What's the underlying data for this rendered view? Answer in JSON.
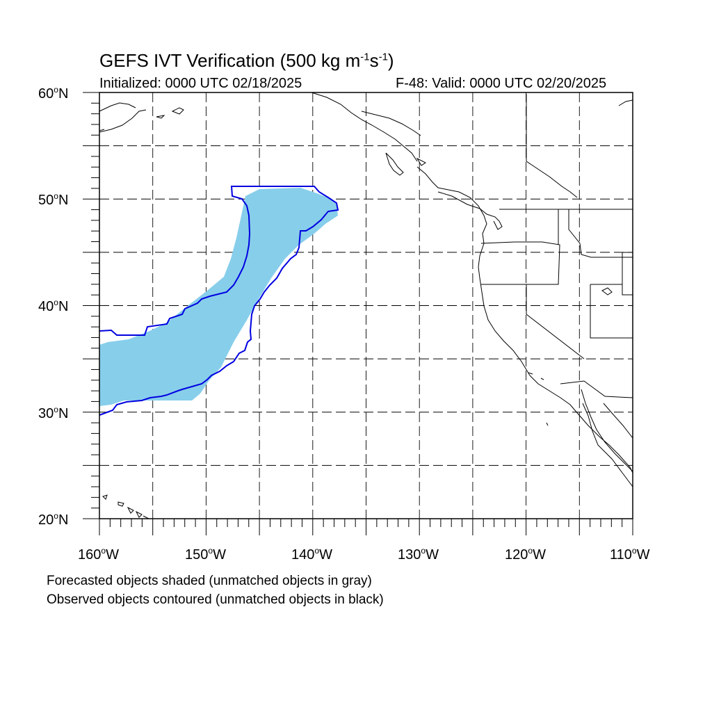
{
  "title": {
    "main": "GEFS IVT Verification (500 kg m",
    "sup1": "-1",
    "mid": "s",
    "sup2": "-1",
    "end": ")"
  },
  "initialized": "Initialized: 0000 UTC 02/18/2025",
  "valid": "F-48: Valid: 0000 UTC 02/20/2025",
  "footnotes": [
    "Forecasted objects shaded (unmatched objects in gray)",
    "Observed objects contoured (unmatched objects in black)"
  ],
  "map": {
    "lon_range": [
      -160,
      -110
    ],
    "lat_range": [
      20,
      60
    ],
    "grid": "dashed every 5 degrees",
    "lat_labels": [
      "20",
      "30",
      "40",
      "50",
      "60"
    ],
    "lat_hemisphere": "N",
    "lon_labels": [
      "160",
      "150",
      "140",
      "130",
      "120",
      "110"
    ],
    "lon_hemisphere": "W",
    "forecast_fill_color": "#87CEEB",
    "observed_contour_color": "#0000E0",
    "coastline_color": "#000000"
  }
}
